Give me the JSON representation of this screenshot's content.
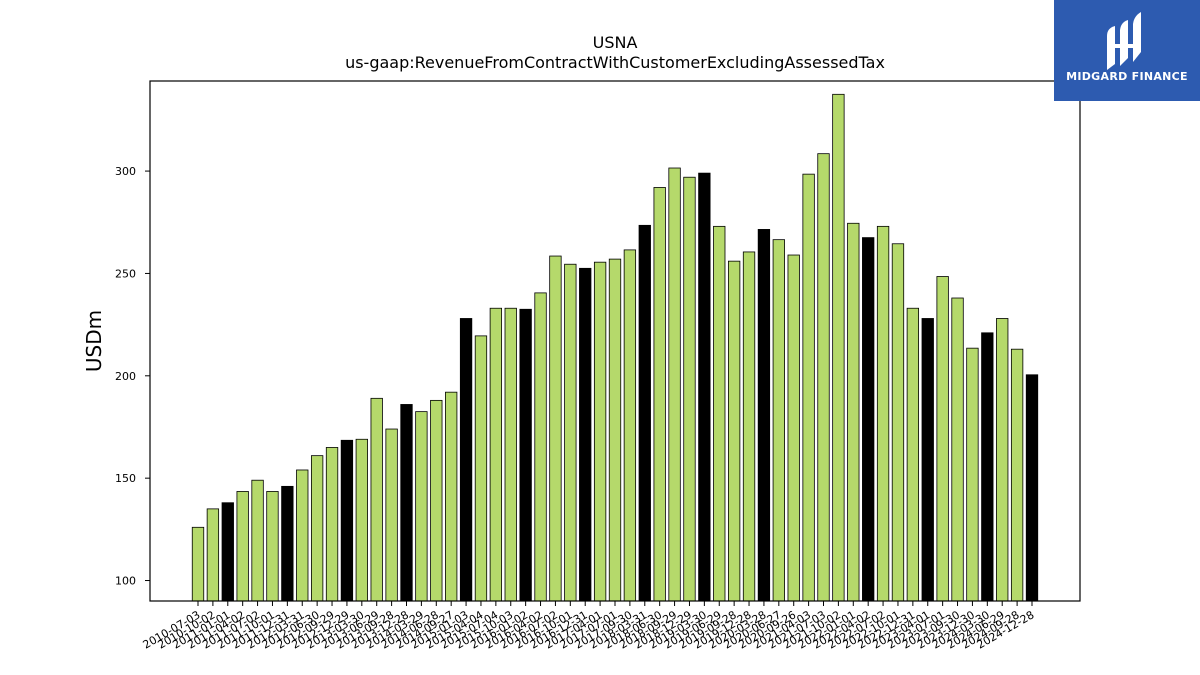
{
  "logo": {
    "text": "MIDGARD FINANCE",
    "background": "#2d5bb0",
    "icon": "midgard-logo-icon"
  },
  "colors": {
    "bar_regular": "#b5d96b",
    "bar_highlight": "#000000",
    "bar_edge": "#000000"
  },
  "chart_data": {
    "type": "bar",
    "title": "USNA",
    "subtitle": "us-gaap:RevenueFromContractWithCustomerExcludingAssessedTax",
    "xlabel": "",
    "ylabel": "USDm",
    "ylim": [
      90,
      344
    ],
    "yticks": [
      100,
      150,
      200,
      250,
      300
    ],
    "grid": false,
    "categories": [
      "2010-07-03",
      "2010-10-02",
      "2011-01-01",
      "2011-04-02",
      "2011-07-02",
      "2011-10-01",
      "2011-12-31",
      "2012-03-31",
      "2012-06-30",
      "2012-09-29",
      "2012-12-29",
      "2013-03-30",
      "2013-06-29",
      "2013-09-28",
      "2013-12-28",
      "2014-03-29",
      "2014-06-28",
      "2014-09-27",
      "2015-01-03",
      "2015-04-04",
      "2015-07-04",
      "2015-10-03",
      "2016-01-02",
      "2016-04-02",
      "2016-07-02",
      "2016-10-01",
      "2016-12-31",
      "2017-04-01",
      "2017-07-01",
      "2017-09-30",
      "2018-03-31",
      "2018-06-30",
      "2018-09-29",
      "2018-12-29",
      "2019-03-30",
      "2019-06-29",
      "2019-09-28",
      "2019-12-28",
      "2020-03-28",
      "2020-06-27",
      "2020-09-26",
      "2021-04-03",
      "2021-07-03",
      "2021-10-02",
      "2022-01-01",
      "2022-04-02",
      "2022-07-02",
      "2022-10-01",
      "2022-12-31",
      "2023-04-01",
      "2023-07-01",
      "2023-09-30",
      "2023-12-30",
      "2024-03-30",
      "2024-06-29",
      "2024-09-28",
      "2024-12-28"
    ],
    "values": [
      126,
      135,
      138,
      143.5,
      149,
      143.5,
      146,
      154,
      161,
      165,
      168.5,
      169,
      189,
      174,
      186,
      182.5,
      188,
      192,
      228,
      219.5,
      233,
      233,
      232.5,
      240.5,
      258.5,
      254.5,
      252.5,
      255.5,
      257,
      261.5,
      273.5,
      292,
      301.5,
      297,
      299,
      273,
      256,
      260.5,
      271.5,
      266.5,
      259,
      298.5,
      308.5,
      337.5,
      274.5,
      267.5,
      273,
      264.5,
      233,
      228,
      248.5,
      238,
      213.5,
      221,
      228,
      213,
      200.5
    ],
    "highlight": [
      false,
      false,
      true,
      false,
      false,
      false,
      true,
      false,
      false,
      false,
      true,
      false,
      false,
      false,
      true,
      false,
      false,
      false,
      true,
      false,
      false,
      false,
      true,
      false,
      false,
      false,
      true,
      false,
      false,
      false,
      true,
      false,
      false,
      false,
      true,
      false,
      false,
      false,
      true,
      false,
      false,
      false,
      false,
      false,
      false,
      true,
      false,
      false,
      false,
      true,
      false,
      false,
      false,
      true,
      false,
      false,
      true
    ]
  }
}
